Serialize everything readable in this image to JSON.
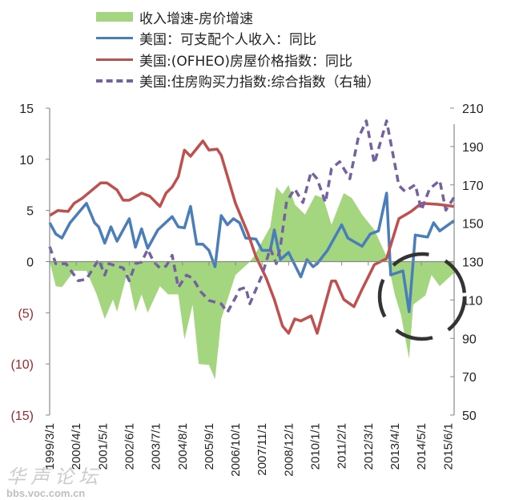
{
  "chart_data": {
    "type": "line",
    "title": "",
    "legend_placement": "top",
    "x_tick_labels": [
      "1999/3/1",
      "2000/4/1",
      "2001/5/1",
      "2002/6/1",
      "2003/7/1",
      "2004/8/1",
      "2005/9/1",
      "2006/10/1",
      "2007/11/1",
      "2008/12/1",
      "2010/1/1",
      "2011/2/1",
      "2012/3/1",
      "2013/4/1",
      "2014/5/1",
      "2015/6/1"
    ],
    "y_left": {
      "ylim": [
        -15,
        15
      ],
      "tick_labels": [
        "(15)",
        "(10)",
        "(5)",
        "0",
        "5",
        "10",
        "15"
      ],
      "tick_values": [
        -15,
        -10,
        -5,
        0,
        5,
        10,
        15
      ],
      "negative_label_color": "#a0282a"
    },
    "y_right": {
      "ylim": [
        50,
        210
      ],
      "tick_labels": [
        "50",
        "70",
        "90",
        "110",
        "130",
        "150",
        "170",
        "190",
        "210"
      ],
      "tick_values": [
        50,
        70,
        90,
        110,
        130,
        150,
        170,
        190,
        210
      ]
    },
    "grid": false,
    "series": [
      {
        "name": "收入增速-房价增速",
        "type": "area",
        "axis": "left",
        "color": "#a3d67f",
        "points": [
          [
            "1999/3",
            0
          ],
          [
            "1999/6",
            -2.4
          ],
          [
            "1999/9",
            -2.5
          ],
          [
            "2000/3",
            -0.9
          ],
          [
            "2000/9",
            -0.9
          ],
          [
            "2001/2",
            -3.2
          ],
          [
            "2001/6",
            -5.6
          ],
          [
            "2001/10",
            -3.7
          ],
          [
            "2001/12",
            -4.9
          ],
          [
            "2002/5",
            -1.1
          ],
          [
            "2002/9",
            -4.9
          ],
          [
            "2002/12",
            -3.2
          ],
          [
            "2003/3",
            -5.0
          ],
          [
            "2003/9",
            -2.4
          ],
          [
            "2004/1",
            -3.2
          ],
          [
            "2004/6",
            -3.2
          ],
          [
            "2004/9",
            -7.6
          ],
          [
            "2005/1",
            -4.2
          ],
          [
            "2005/4",
            -10.0
          ],
          [
            "2005/9",
            -10.1
          ],
          [
            "2005/12",
            -11.5
          ],
          [
            "2006/3",
            -5.6
          ],
          [
            "2006/10",
            -1.3
          ],
          [
            "2007/4",
            -0.2
          ],
          [
            "2007/7",
            0.5
          ],
          [
            "2008/3",
            3.4
          ],
          [
            "2008/6",
            7.3
          ],
          [
            "2008/9",
            6.6
          ],
          [
            "2008/12",
            7.5
          ],
          [
            "2009/3",
            5.6
          ],
          [
            "2009/8",
            4.6
          ],
          [
            "2010/1",
            6.5
          ],
          [
            "2010/5",
            6.2
          ],
          [
            "2010/9",
            3.6
          ],
          [
            "2011/3",
            6.7
          ],
          [
            "2011/7",
            6.2
          ],
          [
            "2011/12",
            4.6
          ],
          [
            "2012/6",
            3.1
          ],
          [
            "2012/12",
            0.5
          ],
          [
            "2013/4",
            -3.2
          ],
          [
            "2013/7",
            -5.2
          ],
          [
            "2013/11",
            -9.5
          ],
          [
            "2014/1",
            -4.2
          ],
          [
            "2014/7",
            -3.3
          ],
          [
            "2014/10",
            -1.3
          ],
          [
            "2015/2",
            -2.4
          ],
          [
            "2015/9",
            -1.1
          ]
        ]
      },
      {
        "name": "美国：可支配个人收入：同比",
        "type": "line",
        "axis": "left",
        "color": "#4a7ebb",
        "points": [
          [
            "1999/3",
            3.8
          ],
          [
            "1999/6",
            2.7
          ],
          [
            "1999/9",
            2.3
          ],
          [
            "2000/1",
            3.8
          ],
          [
            "2000/9",
            5.7
          ],
          [
            "2001/1",
            3.8
          ],
          [
            "2001/3",
            3.4
          ],
          [
            "2001/6",
            1.8
          ],
          [
            "2001/9",
            3.4
          ],
          [
            "2001/12",
            2.0
          ],
          [
            "2002/6",
            4.2
          ],
          [
            "2002/9",
            1.4
          ],
          [
            "2002/12",
            3.2
          ],
          [
            "2003/3",
            1.3
          ],
          [
            "2003/8",
            3.1
          ],
          [
            "2004/3",
            4.4
          ],
          [
            "2004/6",
            3.4
          ],
          [
            "2004/9",
            3.3
          ],
          [
            "2004/12",
            5.4
          ],
          [
            "2005/3",
            1.7
          ],
          [
            "2005/6",
            1.7
          ],
          [
            "2005/9",
            1.1
          ],
          [
            "2005/12",
            -0.5
          ],
          [
            "2006/3",
            4.5
          ],
          [
            "2006/6",
            3.6
          ],
          [
            "2006/9",
            4.2
          ],
          [
            "2006/12",
            3.8
          ],
          [
            "2007/3",
            2.3
          ],
          [
            "2007/8",
            2.2
          ],
          [
            "2007/11",
            1.1
          ],
          [
            "2008/3",
            1.1
          ],
          [
            "2008/5",
            3.1
          ],
          [
            "2008/8",
            0.2
          ],
          [
            "2008/12",
            0.9
          ],
          [
            "2009/6",
            -1.5
          ],
          [
            "2009/9",
            0.2
          ],
          [
            "2009/12",
            -0.5
          ],
          [
            "2010/2",
            -0.2
          ],
          [
            "2010/7",
            1.1
          ],
          [
            "2011/2",
            3.6
          ],
          [
            "2011/5",
            2.3
          ],
          [
            "2011/12",
            1.5
          ],
          [
            "2012/4",
            2.7
          ],
          [
            "2012/8",
            3.0
          ],
          [
            "2012/12",
            6.7
          ],
          [
            "2013/2",
            -1.3
          ],
          [
            "2013/8",
            -0.9
          ],
          [
            "2013/11",
            -4.9
          ],
          [
            "2014/2",
            2.6
          ],
          [
            "2014/8",
            2.4
          ],
          [
            "2014/11",
            3.8
          ],
          [
            "2015/2",
            3.0
          ],
          [
            "2015/9",
            4.0
          ]
        ]
      },
      {
        "name": "美国:(OFHEO)房屋价格指数：同比",
        "type": "line",
        "axis": "left",
        "color": "#c0504d",
        "points": [
          [
            "1999/3",
            4.5
          ],
          [
            "1999/7",
            5.0
          ],
          [
            "1999/12",
            4.9
          ],
          [
            "2000/3",
            5.7
          ],
          [
            "2000/7",
            6.2
          ],
          [
            "2001/4",
            7.7
          ],
          [
            "2001/7",
            7.7
          ],
          [
            "2001/12",
            7.0
          ],
          [
            "2002/3",
            6.0
          ],
          [
            "2002/6",
            6.0
          ],
          [
            "2002/12",
            6.7
          ],
          [
            "2003/4",
            6.4
          ],
          [
            "2003/9",
            5.4
          ],
          [
            "2003/12",
            6.7
          ],
          [
            "2004/3",
            7.3
          ],
          [
            "2004/6",
            8.3
          ],
          [
            "2004/9",
            10.9
          ],
          [
            "2004/12",
            10.3
          ],
          [
            "2005/6",
            11.8
          ],
          [
            "2005/9",
            10.9
          ],
          [
            "2006/1",
            11.0
          ],
          [
            "2006/3",
            10.4
          ],
          [
            "2006/10",
            5.7
          ],
          [
            "2007/4",
            2.8
          ],
          [
            "2007/8",
            0.5
          ],
          [
            "2008/1",
            -1.6
          ],
          [
            "2008/5",
            -3.7
          ],
          [
            "2008/9",
            -6.3
          ],
          [
            "2008/12",
            -7.0
          ],
          [
            "2009/3",
            -5.6
          ],
          [
            "2009/6",
            -5.8
          ],
          [
            "2009/11",
            -5.3
          ],
          [
            "2010/2",
            -7.0
          ],
          [
            "2010/9",
            -1.9
          ],
          [
            "2010/11",
            -1.9
          ],
          [
            "2011/3",
            -3.7
          ],
          [
            "2011/8",
            -4.4
          ],
          [
            "2011/12",
            -2.7
          ],
          [
            "2012/6",
            -0.3
          ],
          [
            "2012/12",
            0.3
          ],
          [
            "2013/6",
            4.2
          ],
          [
            "2013/12",
            4.9
          ],
          [
            "2014/5",
            5.7
          ],
          [
            "2015/1",
            5.6
          ],
          [
            "2015/9",
            5.4
          ]
        ]
      },
      {
        "name": "美国:住房购买力指数:综合指数（右轴）",
        "type": "dashed-line",
        "axis": "right",
        "color": "#7461a0",
        "points": [
          [
            "1999/3",
            137.8
          ],
          [
            "1999/6",
            128.9
          ],
          [
            "1999/11",
            128.9
          ],
          [
            "2000/5",
            120.0
          ],
          [
            "2000/9",
            120.9
          ],
          [
            "2001/3",
            131.1
          ],
          [
            "2001/6",
            123.0
          ],
          [
            "2001/8",
            128.9
          ],
          [
            "2001/12",
            127.6
          ],
          [
            "2002/3",
            126.7
          ],
          [
            "2002/6",
            120.0
          ],
          [
            "2002/9",
            128.9
          ],
          [
            "2002/12",
            129.8
          ],
          [
            "2003/3",
            136.4
          ],
          [
            "2003/6",
            129.8
          ],
          [
            "2003/9",
            126.7
          ],
          [
            "2003/12",
            127.6
          ],
          [
            "2004/3",
            133.3
          ],
          [
            "2004/6",
            116.5
          ],
          [
            "2004/10",
            123.0
          ],
          [
            "2005/1",
            121.4
          ],
          [
            "2005/5",
            114.3
          ],
          [
            "2005/9",
            109.8
          ],
          [
            "2006/3",
            108.0
          ],
          [
            "2006/6",
            103.6
          ],
          [
            "2006/10",
            111.2
          ],
          [
            "2006/12",
            115.6
          ],
          [
            "2007/3",
            116.5
          ],
          [
            "2007/5",
            108.0
          ],
          [
            "2007/11",
            123.0
          ],
          [
            "2008/3",
            136.9
          ],
          [
            "2008/6",
            128.9
          ],
          [
            "2008/8",
            137.8
          ],
          [
            "2008/11",
            161.3
          ],
          [
            "2009/3",
            167.9
          ],
          [
            "2009/7",
            160.8
          ],
          [
            "2009/11",
            176.8
          ],
          [
            "2010/2",
            173.2
          ],
          [
            "2010/6",
            160.8
          ],
          [
            "2010/9",
            178.5
          ],
          [
            "2011/1",
            182.1
          ],
          [
            "2011/6",
            173.2
          ],
          [
            "2011/10",
            194.0
          ],
          [
            "2012/2",
            203.4
          ],
          [
            "2012/6",
            181.2
          ],
          [
            "2012/12",
            203.4
          ],
          [
            "2013/6",
            169.7
          ],
          [
            "2013/9",
            166.6
          ],
          [
            "2014/2",
            170.1
          ],
          [
            "2014/5",
            156.8
          ],
          [
            "2014/9",
            167.9
          ],
          [
            "2015/2",
            172.3
          ],
          [
            "2015/5",
            156.8
          ],
          [
            "2015/9",
            163.5
          ]
        ]
      }
    ],
    "annotations": [
      {
        "type": "dashed-circle",
        "color": "#333333",
        "around": "2013/4–2015/6"
      }
    ]
  },
  "watermark": {
    "line1": "华声论坛",
    "line2": "bbs.voc.com.cn"
  }
}
